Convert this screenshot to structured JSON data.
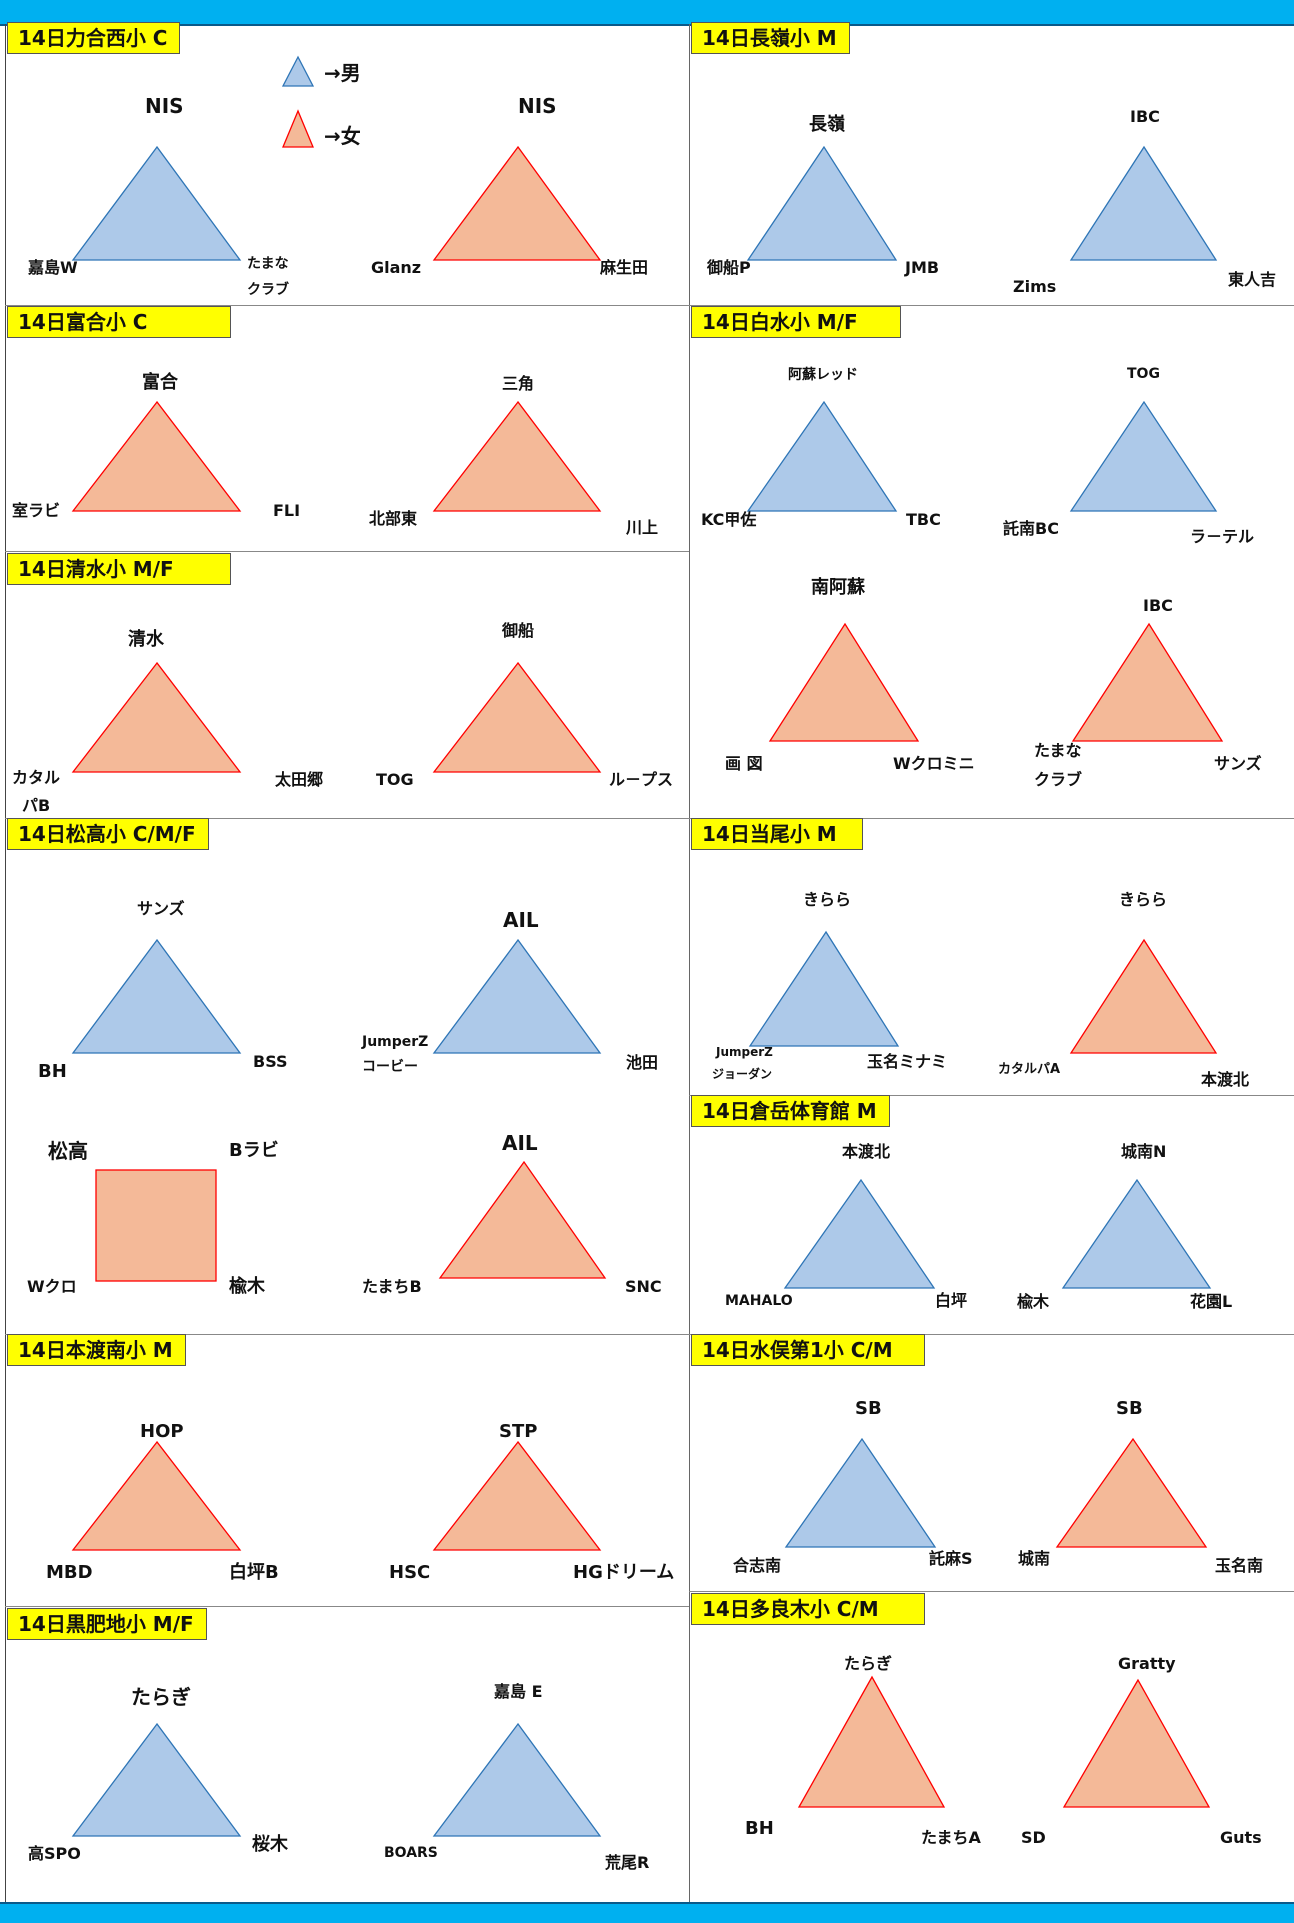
{
  "colors": {
    "header_bar": "#00b0f0",
    "title_bg": "#ffff00",
    "boys_fill": "#adc9e9",
    "boys_stroke": "#2e75b6",
    "girls_fill": "#f4b998",
    "girls_stroke": "#ff0000"
  },
  "legend": {
    "boys": "→男",
    "girls": "→女"
  },
  "sections": {
    "s1": {
      "title": "14日力合西小 C",
      "g1": {
        "top": "NIS",
        "left": "嘉島W",
        "right1": "たまな",
        "right2": "クラブ"
      },
      "g2": {
        "top": "NIS",
        "left": "Glanz",
        "right": "麻生田"
      }
    },
    "s2": {
      "title": "14日長嶺小 M",
      "g1": {
        "top": "長嶺",
        "left": "御船P",
        "right": "JMB"
      },
      "g2": {
        "top": "IBC",
        "left": "Zims",
        "right": "東人吉"
      }
    },
    "s3": {
      "title": "14日富合小 C",
      "g1": {
        "top": "富合",
        "left": "室ラビ",
        "right": "FLI"
      },
      "g2": {
        "top": "三角",
        "left": "北部東",
        "right": "川上"
      }
    },
    "s4": {
      "title": "14日白水小 M/F",
      "g1": {
        "top": "阿蘇レッド",
        "left": "KC甲佐",
        "right": "TBC"
      },
      "g2": {
        "top": "TOG",
        "left": "託南BC",
        "right": "ラ－テル"
      },
      "g3": {
        "top": "南阿蘇",
        "left": "画 図",
        "right": "Wクロミニ"
      },
      "g4": {
        "top": "IBC",
        "left1": "たまな",
        "left2": "クラブ",
        "right": "サンズ"
      }
    },
    "s5": {
      "title": "14日清水小 M/F",
      "g1": {
        "top": "清水",
        "left1": "カタル",
        "left2": "パB",
        "right": "太田郷"
      },
      "g2": {
        "top": "御船",
        "left": "TOG",
        "right": "ル－プス"
      }
    },
    "s6": {
      "title": "14日松高小 C/M/F",
      "g1": {
        "top": "サンズ",
        "left": "BH",
        "right": "BSS"
      },
      "g2": {
        "top": "AIL",
        "left1": "JumperZ",
        "left2": "コービー",
        "right": "池田"
      },
      "g3": {
        "tl": "松高",
        "tr": "Bラビ",
        "bl": "Wクロ",
        "br": "楡木"
      },
      "g4": {
        "top": "AIL",
        "left": "たまちB",
        "right": "SNC"
      }
    },
    "s7": {
      "title": "14日当尾小 M",
      "g1": {
        "top": "きらら",
        "left1": "JumperZ",
        "left2": "ジョーダン",
        "right": "玉名ミナミ"
      },
      "g2": {
        "top": "きらら",
        "left": "カタルパA",
        "right": "本渡北"
      }
    },
    "s8": {
      "title": "14日倉岳体育館 M",
      "g1": {
        "top": "本渡北",
        "left": "MAHALO",
        "right": "白坪"
      },
      "g2": {
        "top": "城南N",
        "left": "楡木",
        "right": "花園L"
      }
    },
    "s9": {
      "title": "14日本渡南小 M",
      "g1": {
        "top": "HOP",
        "left": "MBD",
        "right": "白坪B"
      },
      "g2": {
        "top": "STP",
        "left": "HSC",
        "right": "HGドリーム"
      }
    },
    "s10": {
      "title": "14日水俣第1小  C/M",
      "g1": {
        "top": "SB",
        "left": "合志南",
        "right": "託麻S"
      },
      "g2": {
        "top": "SB",
        "left": "城南",
        "right": "玉名南"
      }
    },
    "s11": {
      "title": "14日黒肥地小 M/F",
      "g1": {
        "top": "たらぎ",
        "left": "高SPO",
        "right": "桜木"
      },
      "g2": {
        "top": "嘉島 E",
        "left": "BOARS",
        "right": "荒尾R"
      }
    },
    "s12": {
      "title": "14日多良木小 C/M",
      "g1": {
        "top": "たらぎ",
        "left": "BH",
        "right": "たまちA"
      },
      "g2": {
        "top": "Gratty",
        "left": "SD",
        "right": "Guts"
      }
    }
  }
}
